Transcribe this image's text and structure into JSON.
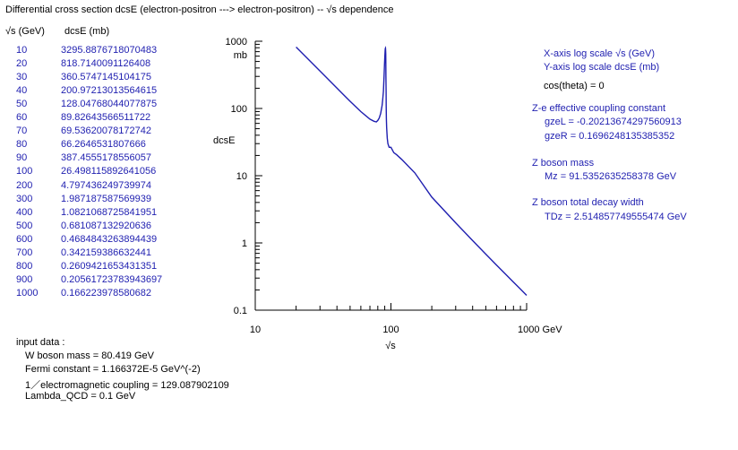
{
  "title": "Differential cross section  dcsE (electron-positron ---> electron-positron) -- √s dependence",
  "table": {
    "col_sqrt_s": "√s  (GeV)",
    "col_dcse": "dcsE  (mb)",
    "rows": [
      {
        "s": "10",
        "dcse": "3295.8876718070483"
      },
      {
        "s": "20",
        "dcse": "818.7140091126408"
      },
      {
        "s": "30",
        "dcse": "360.5747145104175"
      },
      {
        "s": "40",
        "dcse": "200.97213013564615"
      },
      {
        "s": "50",
        "dcse": "128.04768044077875"
      },
      {
        "s": "60",
        "dcse": "89.82643566511722"
      },
      {
        "s": "70",
        "dcse": "69.53620078172742"
      },
      {
        "s": "80",
        "dcse": "66.2646531807666"
      },
      {
        "s": "90",
        "dcse": "387.4555178556057"
      },
      {
        "s": "100",
        "dcse": "26.498115892641056"
      },
      {
        "s": "200",
        "dcse": "4.797436249739974"
      },
      {
        "s": "300",
        "dcse": "1.987187587569939"
      },
      {
        "s": "400",
        "dcse": "1.0821068725841951"
      },
      {
        "s": "500",
        "dcse": "0.681087132920636"
      },
      {
        "s": "600",
        "dcse": "0.4684843263894439"
      },
      {
        "s": "700",
        "dcse": "0.342159386632441"
      },
      {
        "s": "800",
        "dcse": "0.2609421653431351"
      },
      {
        "s": "900",
        "dcse": "0.20561723783943697"
      },
      {
        "s": "1000",
        "dcse": "0.166223978580682"
      }
    ]
  },
  "info": {
    "x_scale": "X-axis log scale  √s (GeV)",
    "y_scale": "Y-axis log scale  dcsE (mb)",
    "cos_theta": "cos(theta) = 0",
    "coupling_title": "Z-e effective coupling constant",
    "gzeL": "gzeL = -0.20213674297560913",
    "gzeR": "gzeR = 0.1696248135385352",
    "mass_title": "Z boson mass",
    "mz": "Mz = 91.5352635258378 GeV",
    "width_title": "Z boson total decay width",
    "tdz": "TDz = 2.514857749555474 GeV"
  },
  "input": {
    "title": "input data :",
    "w_mass": "W boson mass = 80.419 GeV",
    "fermi": "Fermi constant = 1.166372E-5 GeV^(-2)",
    "em": "1／electromagnetic coupling = 129.087902109",
    "qcd": "Lambda_QCD = 0.1 GeV"
  },
  "chart_data": {
    "type": "line",
    "xlabel": "√s",
    "ylabel": "dcsE",
    "y_unit_label": "mb",
    "x_scale": "log",
    "y_scale": "log",
    "xlim": [
      10,
      1000
    ],
    "ylim": [
      0.1,
      1000
    ],
    "x_ticks": [
      "10",
      "100",
      "1000 GeV"
    ],
    "y_ticks": [
      "1000",
      "100",
      "10",
      "1",
      "0.1"
    ],
    "line_color": "#1f1fb0",
    "series": [
      {
        "x": [
          20,
          30,
          40,
          50,
          60,
          70,
          75,
          78,
          80,
          82,
          84,
          86,
          87,
          88,
          89,
          89.7,
          90.2,
          90.6,
          90.9,
          91.1,
          91.3,
          91.5,
          91.7,
          91.9,
          92.1,
          92.3,
          92.6,
          93,
          93.5,
          94,
          95,
          97,
          100,
          105,
          110,
          120,
          150,
          200,
          300,
          400,
          500,
          600,
          700,
          800,
          900,
          1000
        ],
        "y": [
          818.7,
          360.6,
          201.0,
          128.0,
          89.8,
          69.5,
          64.5,
          63.0,
          66.3,
          72,
          84,
          110,
          135,
          180,
          300,
          450,
          600,
          720,
          780,
          790,
          760,
          650,
          470,
          300,
          180,
          110,
          70,
          52,
          42,
          36,
          30,
          26.5,
          26.5,
          22,
          20.5,
          17.5,
          11,
          4.797,
          1.987,
          1.082,
          0.681,
          0.4685,
          0.3422,
          0.2609,
          0.2056,
          0.1662
        ]
      }
    ]
  }
}
